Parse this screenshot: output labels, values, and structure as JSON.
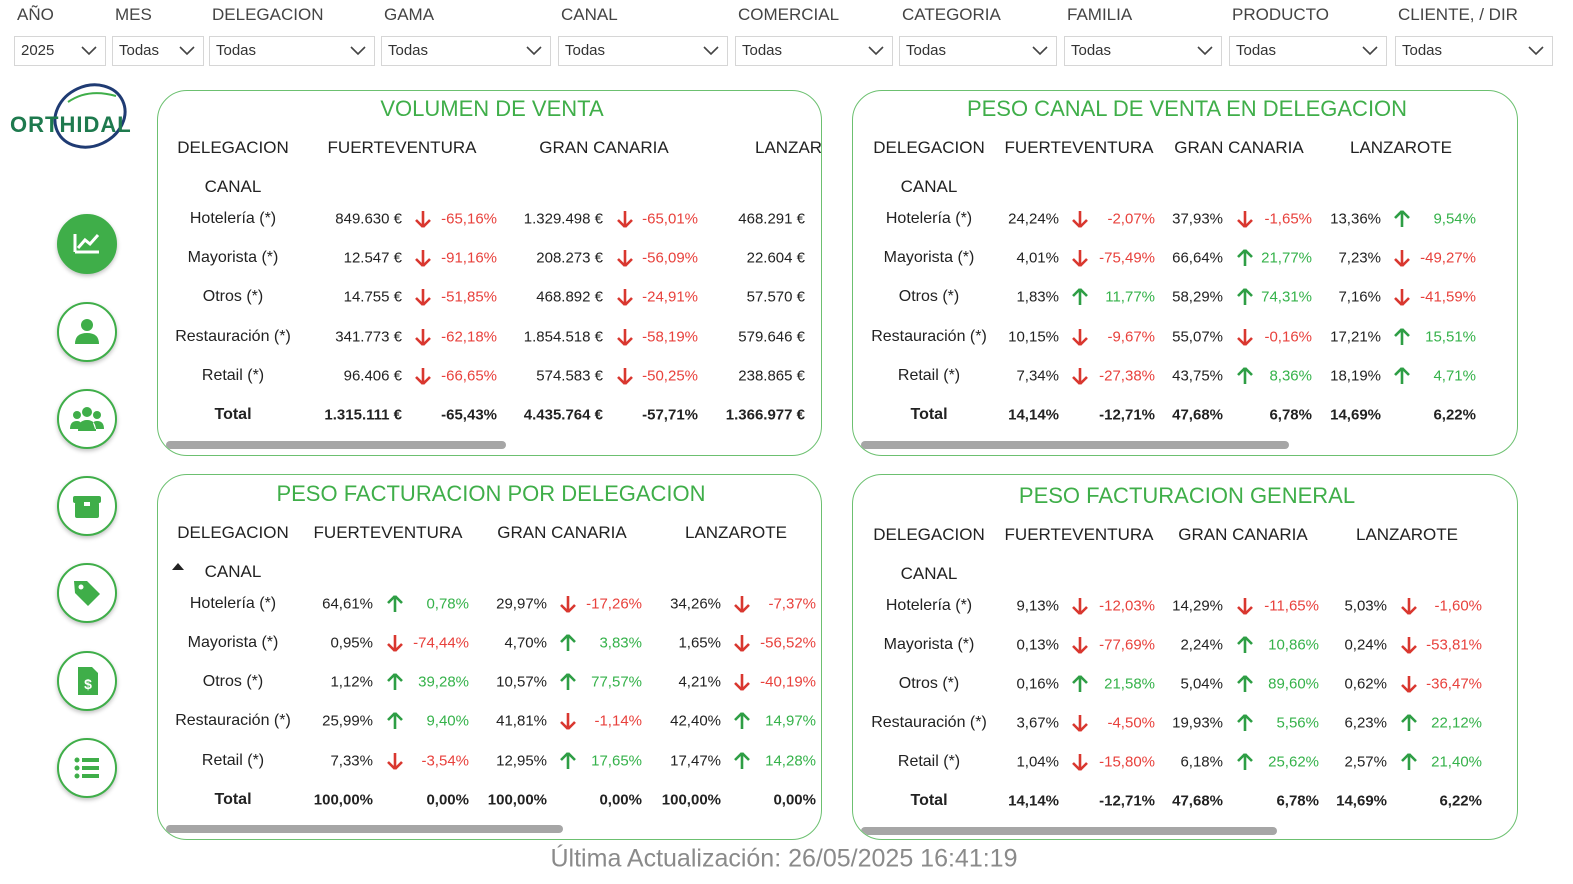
{
  "filters": [
    {
      "label": "AÑO",
      "value": "2025"
    },
    {
      "label": "MES",
      "value": "Todas"
    },
    {
      "label": "DELEGACION",
      "value": "Todas"
    },
    {
      "label": "GAMA",
      "value": "Todas"
    },
    {
      "label": "CANAL",
      "value": "Todas"
    },
    {
      "label": "COMERCIAL",
      "value": "Todas"
    },
    {
      "label": "CATEGORIA",
      "value": "Todas"
    },
    {
      "label": "FAMILIA",
      "value": "Todas"
    },
    {
      "label": "PRODUCTO",
      "value": "Todas"
    },
    {
      "label": "CLIENTE, / DIR",
      "value": "Todas"
    }
  ],
  "logo": "ORTHIDAL",
  "panels": [
    {
      "title": "VOLUMEN DE VENTA",
      "corner_header": "DELEGACION",
      "row_header": "CANAL",
      "columns": [
        "FUERTEVENTURA",
        "GRAN CANARIA",
        "LANZAROTE"
      ],
      "rows": [
        {
          "label": "Hotelería (*)",
          "cells": [
            {
              "value": "849.630 €",
              "change": "-65,16%"
            },
            {
              "value": "1.329.498 €",
              "change": "-65,01%"
            },
            {
              "value": "468.291 €"
            }
          ]
        },
        {
          "label": "Mayorista (*)",
          "cells": [
            {
              "value": "12.547 €",
              "change": "-91,16%"
            },
            {
              "value": "208.273 €",
              "change": "-56,09%"
            },
            {
              "value": "22.604 €"
            }
          ]
        },
        {
          "label": "Otros (*)",
          "cells": [
            {
              "value": "14.755 €",
              "change": "-51,85%"
            },
            {
              "value": "468.892 €",
              "change": "-24,91%"
            },
            {
              "value": "57.570 €"
            }
          ]
        },
        {
          "label": "Restauración (*)",
          "cells": [
            {
              "value": "341.773 €",
              "change": "-62,18%"
            },
            {
              "value": "1.854.518 €",
              "change": "-58,19%"
            },
            {
              "value": "579.646 €"
            }
          ]
        },
        {
          "label": "Retail (*)",
          "cells": [
            {
              "value": "96.406 €",
              "change": "-66,65%"
            },
            {
              "value": "574.583 €",
              "change": "-50,25%"
            },
            {
              "value": "238.865 €"
            }
          ]
        }
      ],
      "total": {
        "label": "Total",
        "cells": [
          {
            "value": "1.315.111 €",
            "change": "-65,43%"
          },
          {
            "value": "4.435.764 €",
            "change": "-57,71%"
          },
          {
            "value": "1.366.977 €"
          }
        ]
      }
    },
    {
      "title": "PESO CANAL DE VENTA EN DELEGACION",
      "corner_header": "DELEGACION",
      "row_header": "CANAL",
      "columns": [
        "FUERTEVENTURA",
        "GRAN CANARIA",
        "LANZAROTE"
      ],
      "rows": [
        {
          "label": "Hotelería (*)",
          "cells": [
            {
              "value": "24,24%",
              "change": "-2,07%"
            },
            {
              "value": "37,93%",
              "change": "-1,65%"
            },
            {
              "value": "13,36%",
              "change": "9,54%"
            }
          ]
        },
        {
          "label": "Mayorista (*)",
          "cells": [
            {
              "value": "4,01%",
              "change": "-75,49%"
            },
            {
              "value": "66,64%",
              "change": "21,77%"
            },
            {
              "value": "7,23%",
              "change": "-49,27%"
            }
          ]
        },
        {
          "label": "Otros (*)",
          "cells": [
            {
              "value": "1,83%",
              "change": "11,77%"
            },
            {
              "value": "58,29%",
              "change": "74,31%"
            },
            {
              "value": "7,16%",
              "change": "-41,59%"
            }
          ]
        },
        {
          "label": "Restauración (*)",
          "cells": [
            {
              "value": "10,15%",
              "change": "-9,67%"
            },
            {
              "value": "55,07%",
              "change": "-0,16%"
            },
            {
              "value": "17,21%",
              "change": "15,51%"
            }
          ]
        },
        {
          "label": "Retail (*)",
          "cells": [
            {
              "value": "7,34%",
              "change": "-27,38%"
            },
            {
              "value": "43,75%",
              "change": "8,36%"
            },
            {
              "value": "18,19%",
              "change": "4,71%"
            }
          ]
        }
      ],
      "total": {
        "label": "Total",
        "cells": [
          {
            "value": "14,14%",
            "change": "-12,71%"
          },
          {
            "value": "47,68%",
            "change": "6,78%"
          },
          {
            "value": "14,69%",
            "change": "6,22%"
          }
        ]
      }
    },
    {
      "title": "PESO FACTURACION POR DELEGACION",
      "corner_header": "DELEGACION",
      "row_header": "CANAL",
      "columns": [
        "FUERTEVENTURA",
        "GRAN CANARIA",
        "LANZAROTE"
      ],
      "rows": [
        {
          "label": "Hotelería (*)",
          "cells": [
            {
              "value": "64,61%",
              "change": "0,78%"
            },
            {
              "value": "29,97%",
              "change": "-17,26%"
            },
            {
              "value": "34,26%",
              "change": "-7,37%"
            }
          ]
        },
        {
          "label": "Mayorista (*)",
          "cells": [
            {
              "value": "0,95%",
              "change": "-74,44%"
            },
            {
              "value": "4,70%",
              "change": "3,83%"
            },
            {
              "value": "1,65%",
              "change": "-56,52%"
            }
          ]
        },
        {
          "label": "Otros (*)",
          "cells": [
            {
              "value": "1,12%",
              "change": "39,28%"
            },
            {
              "value": "10,57%",
              "change": "77,57%"
            },
            {
              "value": "4,21%",
              "change": "-40,19%"
            }
          ]
        },
        {
          "label": "Restauración (*)",
          "cells": [
            {
              "value": "25,99%",
              "change": "9,40%"
            },
            {
              "value": "41,81%",
              "change": "-1,14%"
            },
            {
              "value": "42,40%",
              "change": "14,97%"
            }
          ]
        },
        {
          "label": "Retail (*)",
          "cells": [
            {
              "value": "7,33%",
              "change": "-3,54%"
            },
            {
              "value": "12,95%",
              "change": "17,65%"
            },
            {
              "value": "17,47%",
              "change": "14,28%"
            }
          ]
        }
      ],
      "total": {
        "label": "Total",
        "cells": [
          {
            "value": "100,00%",
            "change": "0,00%"
          },
          {
            "value": "100,00%",
            "change": "0,00%"
          },
          {
            "value": "100,00%",
            "change": "0,00%"
          }
        ]
      }
    },
    {
      "title": "PESO FACTURACION GENERAL",
      "corner_header": "DELEGACION",
      "row_header": "CANAL",
      "columns": [
        "FUERTEVENTURA",
        "GRAN CANARIA",
        "LANZAROTE"
      ],
      "rows": [
        {
          "label": "Hotelería (*)",
          "cells": [
            {
              "value": "9,13%",
              "change": "-12,03%"
            },
            {
              "value": "14,29%",
              "change": "-11,65%"
            },
            {
              "value": "5,03%",
              "change": "-1,60%"
            }
          ]
        },
        {
          "label": "Mayorista (*)",
          "cells": [
            {
              "value": "0,13%",
              "change": "-77,69%"
            },
            {
              "value": "2,24%",
              "change": "10,86%"
            },
            {
              "value": "0,24%",
              "change": "-53,81%"
            }
          ]
        },
        {
          "label": "Otros (*)",
          "cells": [
            {
              "value": "0,16%",
              "change": "21,58%"
            },
            {
              "value": "5,04%",
              "change": "89,60%"
            },
            {
              "value": "0,62%",
              "change": "-36,47%"
            }
          ]
        },
        {
          "label": "Restauración (*)",
          "cells": [
            {
              "value": "3,67%",
              "change": "-4,50%"
            },
            {
              "value": "19,93%",
              "change": "5,56%"
            },
            {
              "value": "6,23%",
              "change": "22,12%"
            }
          ]
        },
        {
          "label": "Retail (*)",
          "cells": [
            {
              "value": "1,04%",
              "change": "-15,80%"
            },
            {
              "value": "6,18%",
              "change": "25,62%"
            },
            {
              "value": "2,57%",
              "change": "21,40%"
            }
          ]
        }
      ],
      "total": {
        "label": "Total",
        "cells": [
          {
            "value": "14,14%",
            "change": "-12,71%"
          },
          {
            "value": "47,68%",
            "change": "6,78%"
          },
          {
            "value": "14,69%",
            "change": "6,22%"
          }
        ]
      }
    }
  ],
  "footer": "Última Actualización: 26/05/2025 16:41:19"
}
